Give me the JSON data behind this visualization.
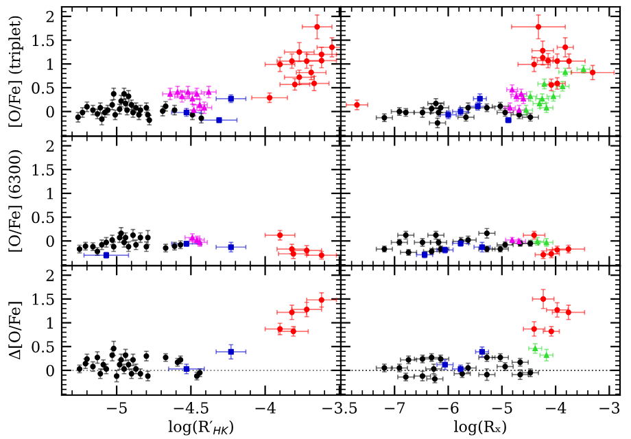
{
  "chart_data": [
    {
      "type": "scatter",
      "ylabel": "[O/Fe] (triplet)",
      "xlim": [
        -5.37,
        -3.49
      ],
      "ylim": [
        -0.52,
        2.2
      ],
      "xticks": [
        -5,
        -4.5,
        -4,
        -3.5
      ],
      "yticks": [
        0,
        0.5,
        1,
        1.5,
        2
      ],
      "tick_labels": "y",
      "grid": false,
      "series": [
        {
          "color": "#000000",
          "marker": "circle",
          "x": [
            -5.26,
            -5.23,
            -5.2,
            -5.16,
            -5.13,
            -5.11,
            -5.1,
            -5.08,
            -5.06,
            -5.03,
            -5.02,
            -5.01,
            -4.98,
            -4.97,
            -4.95,
            -4.94,
            -4.93,
            -4.92,
            -4.9,
            -4.89,
            -4.87,
            -4.85,
            -4.84,
            -4.8,
            -4.78,
            -4.79,
            -4.67,
            -4.61,
            -4.69,
            -4.43,
            -4.49
          ],
          "values": [
            -0.12,
            -0.02,
            0.1,
            0.03,
            -0.05,
            0.08,
            -0.16,
            -0.02,
            0.03,
            0.14,
            0.37,
            -0.07,
            0.05,
            0.22,
            0.37,
            0.17,
            0.03,
            0.32,
            0.14,
            -0.02,
            0.08,
            -0.07,
            0.03,
            0.08,
            -0.18,
            -0.07,
            0.11,
            0.03,
            0.01,
            -0.14,
            -0.07
          ],
          "errors": [
            0.1,
            0.1,
            0.1,
            0.1,
            0.1,
            0.1,
            0.12,
            0.1,
            0.1,
            0.1,
            0.12,
            0.1,
            0.1,
            0.12,
            0.12,
            0.1,
            0.1,
            0.12,
            0.1,
            0.1,
            0.1,
            0.1,
            0.1,
            0.1,
            0.1,
            0.1,
            0.1,
            0.1,
            0.1,
            0.1,
            0.1
          ]
        },
        {
          "color": "#ee00ee",
          "marker": "triangle",
          "x": [
            -4.64,
            -4.59,
            -4.56,
            -4.52,
            -4.49,
            -4.46,
            -4.44,
            -4.38,
            -4.41,
            -4.48
          ],
          "values": [
            0.37,
            0.41,
            0.32,
            0.41,
            0.27,
            0.37,
            0.14,
            0.41,
            0.08,
            0.03
          ],
          "errors": [
            0.12,
            0.12,
            0.12,
            0.12,
            0.12,
            0.12,
            0.12,
            0.12,
            0.12,
            0.12
          ],
          "xerrors": [
            0.05,
            0.05,
            0.05,
            0.05,
            0.05,
            0.05,
            0.05,
            0.05,
            0.05,
            0.05
          ]
        },
        {
          "color": "#0000cc",
          "marker": "square",
          "x": [
            -4.53,
            -4.23,
            -4.31
          ],
          "values": [
            -0.02,
            0.27,
            -0.18
          ],
          "errors": [
            0.08,
            0.08,
            0.05
          ],
          "xerrors": [
            0.1,
            0.1,
            0.12
          ]
        },
        {
          "color": "#ff0000",
          "marker": "circle",
          "x": [
            -3.65,
            -3.55,
            -3.77,
            -3.9,
            -3.82,
            -3.72,
            -3.62,
            -3.62,
            -3.69,
            -3.77,
            -3.8,
            -3.67,
            -3.97
          ],
          "values": [
            1.78,
            1.35,
            1.25,
            0.99,
            1.06,
            1.06,
            1.07,
            1.2,
            0.82,
            0.72,
            0.57,
            0.59,
            0.29
          ],
          "errors": [
            0.25,
            0.2,
            0.2,
            0.15,
            0.15,
            0.15,
            0.15,
            0.15,
            0.15,
            0.15,
            0.12,
            0.15,
            0.1
          ],
          "xerrors": [
            0.1,
            0.1,
            0.1,
            0.1,
            0.1,
            0.1,
            0.1,
            0.1,
            0.1,
            0.1,
            0.1,
            0.1,
            0.12
          ]
        }
      ]
    },
    {
      "type": "scatter",
      "xlim": [
        -8,
        -2.8
      ],
      "ylim": [
        -0.52,
        2.2
      ],
      "xticks": [
        -7,
        -6,
        -5,
        -4,
        -3
      ],
      "yticks": [
        0,
        0.5,
        1,
        1.5,
        2
      ],
      "tick_labels": false,
      "grid": false,
      "series": [
        {
          "color": "#000000",
          "marker": "circle",
          "x": [
            -7.19,
            -6.91,
            -6.79,
            -6.48,
            -6.31,
            -6.23,
            -6.18,
            -6.14,
            -6.2,
            -5.67,
            -5.63,
            -5.28,
            -5.03,
            -4.94,
            -4.68,
            -4.47
          ],
          "values": [
            -0.13,
            0.0,
            -0.02,
            -0.02,
            0.06,
            0.17,
            -0.02,
            0.08,
            -0.24,
            -0.12,
            0.08,
            0.08,
            0.11,
            -0.02,
            -0.07,
            -0.12
          ],
          "errors": [
            0.08,
            0.08,
            0.08,
            0.1,
            0.1,
            0.1,
            0.08,
            0.1,
            0.1,
            0.08,
            0.1,
            0.08,
            0.08,
            0.08,
            0.08,
            0.08
          ],
          "xerrors": [
            0.15,
            0.15,
            0.15,
            0.15,
            0.15,
            0.15,
            0.15,
            0.15,
            0.15,
            0.15,
            0.15,
            0.15,
            0.15,
            0.15,
            0.15,
            0.15
          ]
        },
        {
          "color": "#ee00ee",
          "marker": "triangle",
          "x": [
            -4.81,
            -4.73,
            -4.64,
            -4.85,
            -4.68,
            -4.6
          ],
          "values": [
            0.46,
            0.32,
            0.37,
            0.08,
            0.03,
            0.27
          ],
          "errors": [
            0.1,
            0.1,
            0.1,
            0.1,
            0.1,
            0.1
          ],
          "xerrors": [
            0.1,
            0.1,
            0.1,
            0.1,
            0.1,
            0.1
          ]
        },
        {
          "color": "#33dd33",
          "marker": "triangle",
          "x": [
            -3.48,
            -3.82,
            -3.87,
            -4.21,
            -4.25,
            -4.17,
            -4.47,
            -4.3,
            -4.04,
            -4.55
          ],
          "values": [
            0.89,
            0.83,
            0.53,
            0.58,
            0.27,
            0.08,
            0.32,
            0.17,
            0.32,
            0.03
          ],
          "errors": [
            0.08,
            0.08,
            0.1,
            0.1,
            0.1,
            0.1,
            0.1,
            0.1,
            0.1,
            0.1
          ],
          "xerrors": [
            0.12,
            0.12,
            0.12,
            0.12,
            0.12,
            0.12,
            0.12,
            0.12,
            0.12,
            0.12
          ]
        },
        {
          "color": "#0000cc",
          "marker": "square",
          "x": [
            -5.41,
            -6.0,
            -5.77,
            -4.88,
            -5.45
          ],
          "values": [
            0.27,
            -0.07,
            0.0,
            -0.18,
            0.11
          ],
          "errors": [
            0.1,
            0.08,
            0.08,
            0.05,
            0.08
          ],
          "xerrors": [
            0.12,
            0.15,
            0.15,
            0.05,
            0.15
          ]
        },
        {
          "color": "#ff0000",
          "marker": "circle",
          "x": [
            -4.32,
            -3.82,
            -4.24,
            -4.24,
            -4.4,
            -4.14,
            -3.97,
            -3.75,
            -3.31,
            -4.08,
            -3.97,
            -7.7
          ],
          "values": [
            1.78,
            1.35,
            1.28,
            1.13,
            0.99,
            1.07,
            1.06,
            1.06,
            0.82,
            0.56,
            0.59,
            0.14
          ],
          "errors": [
            0.25,
            0.2,
            0.2,
            0.15,
            0.15,
            0.15,
            0.15,
            0.15,
            0.15,
            0.12,
            0.12,
            0.1
          ],
          "xerrors": [
            0.5,
            0.15,
            0.2,
            0.2,
            0.3,
            0.2,
            0.2,
            0.3,
            0.4,
            0.15,
            0.15,
            0.2
          ]
        }
      ]
    },
    {
      "type": "scatter",
      "ylabel": "[O/Fe] (6300)",
      "xlim": [
        -5.37,
        -3.49
      ],
      "ylim": [
        -0.52,
        2.2
      ],
      "xticks": [
        -5,
        -4.5,
        -4,
        -3.5
      ],
      "yticks": [
        0,
        0.5,
        1,
        1.5,
        2
      ],
      "tick_labels": "y",
      "grid": false,
      "series": [
        {
          "color": "#000000",
          "marker": "circle",
          "x": [
            -5.25,
            -5.21,
            -5.16,
            -5.13,
            -5.1,
            -5.07,
            -5.03,
            -5.02,
            -4.98,
            -4.97,
            -4.95,
            -4.94,
            -4.92,
            -4.89,
            -4.87,
            -4.84,
            -4.8,
            -4.79,
            -4.67,
            -4.61,
            -4.57
          ],
          "values": [
            -0.17,
            -0.11,
            -0.12,
            -0.22,
            -0.08,
            -0.03,
            0.02,
            -0.12,
            0.07,
            0.16,
            -0.03,
            0.07,
            -0.12,
            0.12,
            -0.08,
            0.07,
            -0.12,
            0.07,
            -0.15,
            -0.11,
            -0.08
          ],
          "errors": [
            0.08,
            0.08,
            0.08,
            0.08,
            0.1,
            0.1,
            0.1,
            0.1,
            0.1,
            0.12,
            0.1,
            0.1,
            0.1,
            0.12,
            0.1,
            0.1,
            0.1,
            0.15,
            0.08,
            0.08,
            0.08
          ]
        },
        {
          "color": "#ee00ee",
          "marker": "triangle",
          "x": [
            -4.49,
            -4.46,
            -4.44
          ],
          "values": [
            0.07,
            0.02,
            -0.03
          ],
          "errors": [
            0.08,
            0.08,
            0.08
          ],
          "xerrors": [
            0.05,
            0.05,
            0.05
          ]
        },
        {
          "color": "#0000cc",
          "marker": "square",
          "x": [
            -5.07,
            -4.53,
            -4.23
          ],
          "values": [
            -0.3,
            -0.06,
            -0.13
          ],
          "errors": [
            0.06,
            0.05,
            0.1
          ],
          "xerrors": [
            0.15,
            0.1,
            0.1
          ]
        },
        {
          "color": "#ff0000",
          "marker": "circle",
          "x": [
            -3.9,
            -3.82,
            -3.81,
            -3.72,
            -3.62
          ],
          "values": [
            0.12,
            -0.17,
            -0.27,
            -0.2,
            -0.3
          ],
          "errors": [
            0.1,
            0.1,
            0.1,
            0.1,
            0.08
          ],
          "xerrors": [
            0.1,
            0.1,
            0.1,
            0.1,
            0.1
          ]
        }
      ]
    },
    {
      "type": "scatter",
      "xlim": [
        -8,
        -2.8
      ],
      "ylim": [
        -0.52,
        2.2
      ],
      "xticks": [
        -7,
        -6,
        -5,
        -4,
        -3
      ],
      "yticks": [
        0,
        0.5,
        1,
        1.5,
        2
      ],
      "tick_labels": false,
      "grid": false,
      "series": [
        {
          "color": "#000000",
          "marker": "circle",
          "x": [
            -7.19,
            -6.91,
            -6.79,
            -6.74,
            -6.48,
            -6.31,
            -6.23,
            -6.18,
            -6.14,
            -5.76,
            -5.63,
            -5.28,
            -5.28,
            -5.03,
            -4.94,
            -4.66,
            -4.47
          ],
          "values": [
            -0.17,
            -0.03,
            0.12,
            -0.24,
            -0.03,
            -0.22,
            0.12,
            -0.03,
            -0.17,
            -0.01,
            0.02,
            0.16,
            -0.17,
            -0.17,
            -0.08,
            -0.05,
            -0.05
          ],
          "errors": [
            0.06,
            0.06,
            0.08,
            0.06,
            0.08,
            0.06,
            0.08,
            0.06,
            0.06,
            0.08,
            0.08,
            0.1,
            0.06,
            0.06,
            0.06,
            0.06,
            0.06
          ],
          "xerrors": [
            0.15,
            0.15,
            0.15,
            0.15,
            0.15,
            0.15,
            0.15,
            0.15,
            0.15,
            0.15,
            0.15,
            0.15,
            0.15,
            0.15,
            0.15,
            0.15,
            0.15
          ]
        },
        {
          "color": "#0000cc",
          "marker": "square",
          "x": [
            -6.44,
            -6.06,
            -5.77,
            -5.37
          ],
          "values": [
            -0.29,
            -0.19,
            -0.05,
            -0.13
          ],
          "errors": [
            0.06,
            0.06,
            0.06,
            0.1
          ],
          "xerrors": [
            0.15,
            0.15,
            0.15,
            0.15
          ]
        },
        {
          "color": "#ee00ee",
          "marker": "triangle",
          "x": [
            -4.81,
            -4.68
          ],
          "values": [
            0.02,
            -0.01
          ],
          "errors": [
            0.05,
            0.05
          ],
          "xerrors": [
            0.12,
            0.12
          ]
        },
        {
          "color": "#33dd33",
          "marker": "triangle",
          "x": [
            -4.34,
            -4.17
          ],
          "values": [
            -0.01,
            -0.03
          ],
          "errors": [
            0.08,
            0.08
          ],
          "xerrors": [
            0.12,
            0.12
          ]
        },
        {
          "color": "#ff0000",
          "marker": "circle",
          "x": [
            -4.4,
            -4.23,
            -4.08,
            -3.97,
            -3.76
          ],
          "values": [
            0.12,
            -0.29,
            -0.27,
            -0.19,
            -0.17
          ],
          "errors": [
            0.08,
            0.08,
            0.08,
            0.08,
            0.08
          ],
          "xerrors": [
            0.2,
            0.15,
            0.15,
            0.2,
            0.3
          ]
        }
      ]
    },
    {
      "type": "scatter",
      "ylabel": "Δ[O/Fe]",
      "xlabel": "log(R′$_{HK}$)",
      "xlim": [
        -5.37,
        -3.49
      ],
      "ylim": [
        -0.52,
        2.2
      ],
      "xticks": [
        {
          "value": -5,
          "label": "−5"
        },
        {
          "value": -4.5,
          "label": "−4.5"
        },
        {
          "value": -4,
          "label": "−4"
        },
        {
          "value": -3.5,
          "label": "−3.5"
        }
      ],
      "yticks": [
        0,
        0.5,
        1,
        1.5,
        2
      ],
      "grid": false,
      "ref_lines": [
        {
          "axis": "y",
          "value": 0,
          "color": "#888888",
          "line_style": "dotted"
        }
      ],
      "series": [
        {
          "color": "#000000",
          "marker": "circle",
          "x": [
            -5.25,
            -5.21,
            -5.2,
            -5.16,
            -5.13,
            -5.11,
            -5.09,
            -5.07,
            -5.03,
            -5.02,
            -5.0,
            -4.98,
            -4.97,
            -4.95,
            -4.94,
            -4.92,
            -4.9,
            -4.89,
            -4.87,
            -4.84,
            -4.8,
            -4.79,
            -4.67,
            -4.59,
            -4.57,
            -4.46,
            -4.44
          ],
          "values": [
            0.03,
            0.14,
            0.24,
            0.08,
            0.27,
            -0.07,
            0.12,
            0.03,
            0.32,
            0.46,
            -0.12,
            0.12,
            0.22,
            0.03,
            0.32,
            0.12,
            -0.07,
            0.22,
            0.03,
            -0.07,
            0.3,
            -0.12,
            0.27,
            0.17,
            0.22,
            -0.12,
            -0.05
          ],
          "errors": [
            0.08,
            0.1,
            0.1,
            0.1,
            0.12,
            0.1,
            0.1,
            0.1,
            0.12,
            0.15,
            0.12,
            0.1,
            0.12,
            0.1,
            0.12,
            0.1,
            0.1,
            0.12,
            0.1,
            0.1,
            0.1,
            0.1,
            0.08,
            0.08,
            0.08,
            0.08,
            0.08
          ]
        },
        {
          "color": "#0000cc",
          "marker": "square",
          "x": [
            -4.53,
            -4.23
          ],
          "values": [
            0.03,
            0.39
          ],
          "errors": [
            0.1,
            0.15
          ],
          "xerrors": [
            0.12,
            0.1
          ]
        },
        {
          "color": "#ff0000",
          "marker": "circle",
          "x": [
            -3.62,
            -3.72,
            -3.82,
            -3.9,
            -3.81
          ],
          "values": [
            1.48,
            1.28,
            1.22,
            0.87,
            0.82
          ],
          "errors": [
            0.15,
            0.15,
            0.15,
            0.12,
            0.1
          ],
          "xerrors": [
            0.1,
            0.1,
            0.1,
            0.1,
            0.1
          ]
        }
      ]
    },
    {
      "type": "scatter",
      "xlabel": "log(Rₓ)",
      "xlim": [
        -8,
        -2.8
      ],
      "ylim": [
        -0.52,
        2.2
      ],
      "xticks": [
        {
          "value": -7,
          "label": "−7"
        },
        {
          "value": -6,
          "label": "−6"
        },
        {
          "value": -5,
          "label": "−5"
        },
        {
          "value": -4,
          "label": "−4"
        },
        {
          "value": -3,
          "label": "−3"
        }
      ],
      "yticks": [
        0,
        0.5,
        1,
        1.5,
        2
      ],
      "tick_labels": "x",
      "grid": false,
      "ref_lines": [
        {
          "axis": "y",
          "value": 0,
          "color": "#444444",
          "line_style": "dotted"
        }
      ],
      "series": [
        {
          "color": "#000000",
          "marker": "circle",
          "x": [
            -7.19,
            -6.91,
            -6.79,
            -6.74,
            -6.48,
            -6.48,
            -6.31,
            -6.27,
            -6.25,
            -6.14,
            -5.74,
            -5.63,
            -5.28,
            -5.28,
            -5.03,
            -4.94,
            -4.66,
            -4.66,
            -4.47
          ],
          "values": [
            0.05,
            0.05,
            -0.14,
            0.22,
            0.24,
            -0.12,
            0.27,
            0.03,
            -0.18,
            0.24,
            -0.07,
            0.05,
            -0.09,
            0.27,
            0.27,
            0.08,
            0.17,
            -0.09,
            -0.05
          ],
          "errors": [
            0.08,
            0.08,
            0.08,
            0.08,
            0.08,
            0.1,
            0.08,
            0.1,
            0.08,
            0.08,
            0.08,
            0.1,
            0.12,
            0.08,
            0.08,
            0.08,
            0.08,
            0.1,
            0.08
          ],
          "xerrors": [
            0.15,
            0.15,
            0.15,
            0.15,
            0.15,
            0.15,
            0.15,
            0.15,
            0.15,
            0.15,
            0.15,
            0.15,
            0.15,
            0.15,
            0.15,
            0.15,
            0.15,
            0.15,
            0.15
          ]
        },
        {
          "color": "#0000cc",
          "marker": "square",
          "x": [
            -5.37,
            -6.06,
            -5.77
          ],
          "values": [
            0.39,
            0.12,
            0.03
          ],
          "errors": [
            0.1,
            0.1,
            0.08
          ],
          "xerrors": [
            0.12,
            0.15,
            0.15
          ]
        },
        {
          "color": "#33dd33",
          "marker": "triangle",
          "x": [
            -4.38,
            -4.17
          ],
          "values": [
            0.46,
            0.32
          ],
          "errors": [
            0.1,
            0.12
          ],
          "xerrors": [
            0.12,
            0.12
          ]
        },
        {
          "color": "#ff0000",
          "marker": "circle",
          "x": [
            -4.23,
            -3.97,
            -3.76,
            -4.4,
            -4.08
          ],
          "values": [
            1.5,
            1.27,
            1.22,
            0.87,
            0.82
          ],
          "errors": [
            0.2,
            0.15,
            0.15,
            0.15,
            0.1
          ],
          "xerrors": [
            0.2,
            0.2,
            0.3,
            0.2,
            0.15
          ]
        }
      ]
    }
  ]
}
